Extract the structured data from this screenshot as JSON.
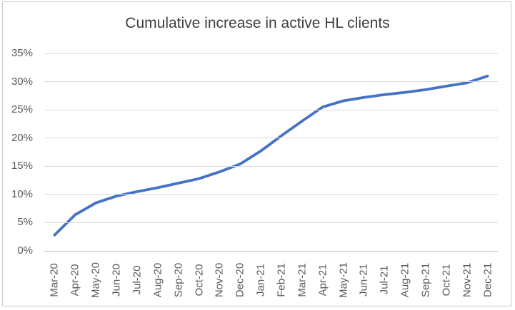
{
  "window": {
    "background": "#ffffff",
    "border_color": "#c9c9c9"
  },
  "chart_data": {
    "type": "line",
    "title": "Cumulative increase in active HL clients",
    "categories": [
      "Mar-20",
      "Apr-20",
      "May-20",
      "Jun-20",
      "Jul-20",
      "Aug-20",
      "Sep-20",
      "Oct-20",
      "Nov-20",
      "Dec-20",
      "Jan-21",
      "Feb-21",
      "Mar-21",
      "Apr-21",
      "May-21",
      "Jun-21",
      "Jul-21",
      "Aug-21",
      "Sep-21",
      "Oct-21",
      "Nov-21",
      "Dec-21"
    ],
    "values": [
      2.8,
      6.4,
      8.5,
      9.7,
      10.5,
      11.2,
      12.0,
      12.8,
      14.0,
      15.4,
      17.7,
      20.4,
      23.0,
      25.5,
      26.6,
      27.2,
      27.7,
      28.1,
      28.6,
      29.2,
      29.8,
      31.0
    ],
    "values_unit": "%",
    "xlabel": "",
    "ylabel": "",
    "ylim": [
      0,
      35
    ],
    "ytick_step": 5,
    "ytick_labels": [
      "0%",
      "5%",
      "10%",
      "15%",
      "20%",
      "25%",
      "30%",
      "35%"
    ],
    "grid": true,
    "legend": false,
    "line_color": "#4472C4",
    "gridline_color": "#d9d9d9",
    "axis_line_color": "#bfbfbf",
    "tick_label_color": "#595959",
    "title_color": "#404040"
  }
}
